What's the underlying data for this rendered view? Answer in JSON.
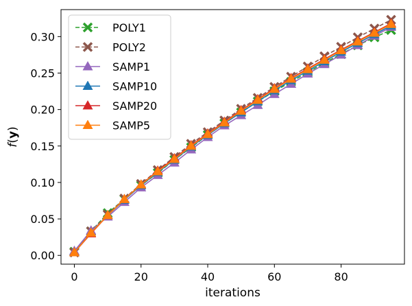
{
  "chart_data": {
    "type": "line",
    "xlabel": "iterations",
    "ylabel": "f(y)",
    "xlim": [
      -4,
      99
    ],
    "ylim": [
      -0.012,
      0.337
    ],
    "xticks": [
      0,
      20,
      40,
      60,
      80
    ],
    "yticks": [
      0.0,
      0.05,
      0.1,
      0.15,
      0.2,
      0.25,
      0.3
    ],
    "legend_position": "top-left",
    "grid": false,
    "x": [
      0,
      5,
      10,
      15,
      20,
      25,
      30,
      35,
      40,
      45,
      50,
      55,
      60,
      65,
      70,
      75,
      80,
      85,
      90,
      95
    ],
    "series": [
      {
        "name": "POLY1",
        "color": "#2ca02c",
        "marker": "X",
        "linestyle": "dashed",
        "values": [
          0.005,
          0.033,
          0.058,
          0.077,
          0.096,
          0.113,
          0.131,
          0.148,
          0.165,
          0.181,
          0.196,
          0.211,
          0.225,
          0.238,
          0.251,
          0.264,
          0.276,
          0.288,
          0.299,
          0.309
        ]
      },
      {
        "name": "POLY2",
        "color": "#8c564b",
        "marker": "X",
        "linestyle": "dashed",
        "values": [
          0.004,
          0.033,
          0.056,
          0.078,
          0.098,
          0.117,
          0.135,
          0.153,
          0.169,
          0.185,
          0.201,
          0.216,
          0.231,
          0.245,
          0.259,
          0.273,
          0.286,
          0.299,
          0.311,
          0.323
        ]
      },
      {
        "name": "SAMP1",
        "color": "#9467bd",
        "marker": "triangle",
        "linestyle": "solid",
        "values": [
          0.006,
          0.034,
          0.053,
          0.073,
          0.093,
          0.11,
          0.127,
          0.145,
          0.162,
          0.178,
          0.192,
          0.206,
          0.221,
          0.235,
          0.249,
          0.262,
          0.275,
          0.288,
          0.301,
          0.313
        ]
      },
      {
        "name": "SAMP10",
        "color": "#1f77b4",
        "marker": "triangle",
        "linestyle": "solid",
        "values": [
          0.004,
          0.031,
          0.055,
          0.076,
          0.096,
          0.114,
          0.131,
          0.149,
          0.165,
          0.181,
          0.196,
          0.211,
          0.226,
          0.24,
          0.253,
          0.266,
          0.279,
          0.291,
          0.303,
          0.315
        ]
      },
      {
        "name": "SAMP20",
        "color": "#d62728",
        "marker": "triangle",
        "linestyle": "solid",
        "values": [
          0.004,
          0.03,
          0.055,
          0.077,
          0.097,
          0.116,
          0.133,
          0.151,
          0.167,
          0.183,
          0.199,
          0.214,
          0.229,
          0.243,
          0.256,
          0.269,
          0.282,
          0.294,
          0.306,
          0.318
        ]
      },
      {
        "name": "SAMP5",
        "color": "#ff7f0e",
        "marker": "triangle",
        "linestyle": "solid",
        "values": [
          0.004,
          0.031,
          0.055,
          0.077,
          0.097,
          0.115,
          0.132,
          0.15,
          0.166,
          0.182,
          0.198,
          0.213,
          0.228,
          0.242,
          0.255,
          0.268,
          0.281,
          0.293,
          0.305,
          0.317
        ]
      }
    ]
  }
}
